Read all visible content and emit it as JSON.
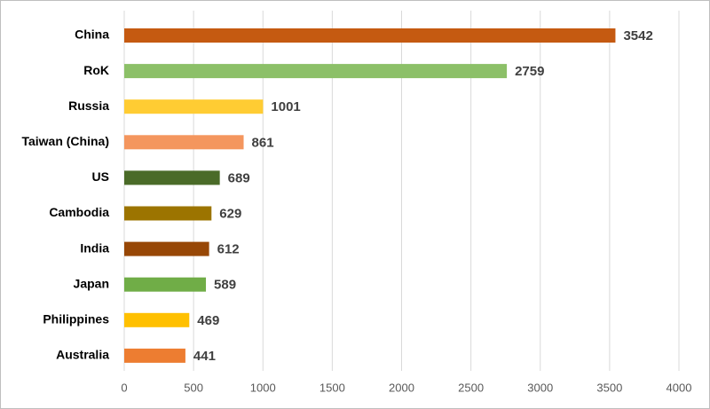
{
  "chart_data": {
    "type": "bar",
    "orientation": "horizontal",
    "title": "",
    "xlabel": "",
    "ylabel": "",
    "categories": [
      "China",
      "RoK",
      "Russia",
      "Taiwan (China)",
      "US",
      "Cambodia",
      "India",
      "Japan",
      "Philippines",
      "Australia"
    ],
    "values": [
      3542,
      2759,
      1001,
      861,
      689,
      629,
      612,
      589,
      469,
      441
    ],
    "colors": [
      "#c55a11",
      "#8cc068",
      "#ffcc33",
      "#f4965e",
      "#4a6b28",
      "#9c7400",
      "#974706",
      "#70ad47",
      "#ffc000",
      "#ed7d31"
    ],
    "xlim": [
      0,
      4000
    ],
    "xticks": [
      0,
      500,
      1000,
      1500,
      2000,
      2500,
      3000,
      3500,
      4000
    ],
    "grid": true,
    "legend": "none",
    "data_labels": true
  }
}
